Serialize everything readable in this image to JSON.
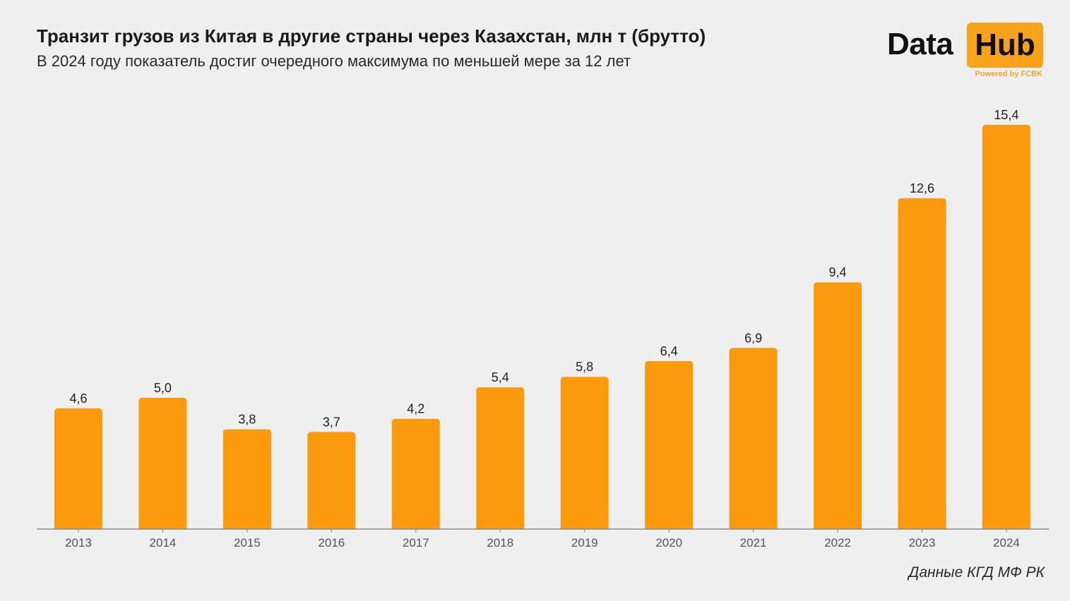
{
  "header": {
    "title": "Транзит грузов из Китая в другие страны через Казахстан, млн т (брутто)",
    "subtitle": "В 2024 году показатель достиг очередного максимума по меньшей мере за 12 лет"
  },
  "logo": {
    "word1": "Data",
    "word2": "Hub",
    "powered": "Powered by FCBK"
  },
  "source": "Данные КГД МФ РК",
  "colors": {
    "bar": "#fc9a0e",
    "axis": "#888888"
  },
  "chart_data": {
    "type": "bar",
    "title": "Транзит грузов из Китая в другие страны через Казахстан, млн т (брутто)",
    "xlabel": "",
    "ylabel": "",
    "ylim": [
      0,
      15.4
    ],
    "grid": false,
    "categories": [
      "2013",
      "2014",
      "2015",
      "2016",
      "2017",
      "2018",
      "2019",
      "2020",
      "2021",
      "2022",
      "2023",
      "2024"
    ],
    "values": [
      4.6,
      5.0,
      3.8,
      3.7,
      4.2,
      5.4,
      5.8,
      6.4,
      6.9,
      9.4,
      12.6,
      15.4
    ],
    "labels": [
      "4,6",
      "5,0",
      "3,8",
      "3,7",
      "4,2",
      "5,4",
      "5,8",
      "6,4",
      "6,9",
      "9,4",
      "12,6",
      "15,4"
    ]
  }
}
